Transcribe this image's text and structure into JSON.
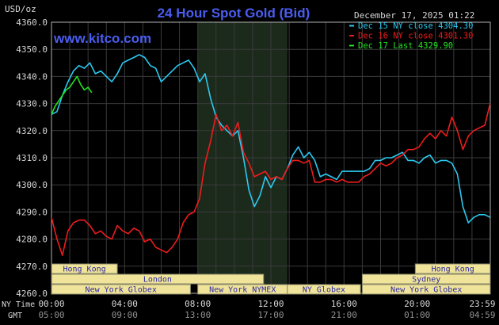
{
  "colors": {
    "background": "#000000",
    "plot_border": "#b0b0b0",
    "grid": "#3a3a3a",
    "night_band": "#1c2a1c",
    "title": "#4a5df0",
    "site": "#4a5df0",
    "axis_text": "#d8d8d8",
    "session_fill": "#f0e39a",
    "session_stroke": "#8a8a6a",
    "session_text": "#2a2aa0",
    "dec15": "#2cc9f0",
    "dec16": "#ee1c1c",
    "dec17": "#22e322"
  },
  "header": {
    "unit_label": "USD/oz",
    "title": "24 Hour Spot Gold (Bid)",
    "timestamp": "December 17, 2025 01:22",
    "site": "www.kitco.com"
  },
  "legend_items": [
    {
      "label": "Dec 15 NY close 4304.30",
      "color": "#2cc9f0"
    },
    {
      "label": "Dec 16 NY close 4301.30",
      "color": "#ee1c1c"
    },
    {
      "label": "Dec 17 Last 4329.90",
      "color": "#22e322"
    }
  ],
  "time_rows": {
    "ny_label": "NY Time",
    "gmt_label": "GMT",
    "ny_ticks": [
      "00:00",
      "04:00",
      "08:00",
      "12:00",
      "16:00",
      "20:00",
      "23:59"
    ],
    "gmt_ticks": [
      "05:00",
      "09:00",
      "13:00",
      "17:00",
      "21:00",
      "01:00",
      "04:59"
    ]
  },
  "sessions": [
    {
      "label": "Hong Kong",
      "start": -4,
      "end": 3.6,
      "row": 0
    },
    {
      "label": "Hong Kong",
      "start": 19.9,
      "end": 24,
      "row": 0
    },
    {
      "label": "London",
      "start": -4,
      "end": 11.6,
      "row": 1
    },
    {
      "label": "Sydney",
      "start": 17,
      "end": 24,
      "row": 1
    },
    {
      "label": "New York Globex",
      "start": -4,
      "end": 7.6,
      "row": 2
    },
    {
      "label": "New York NYMEX",
      "start": 8,
      "end": 12.9,
      "row": 2
    },
    {
      "label": "NY Globex",
      "start": 12.9,
      "end": 16.9,
      "row": 2
    },
    {
      "label": "New York Globex",
      "start": 17,
      "end": 24,
      "row": 2
    }
  ],
  "chart_data": {
    "type": "line",
    "title": "24 Hour Spot Gold (Bid)",
    "ylabel": "USD/oz",
    "xlabel": "",
    "xlim": [
      0,
      24
    ],
    "ylim": [
      4260,
      4360
    ],
    "x_unit": "hours, NY time",
    "y_ticks": [
      "4360.0",
      "4350.0",
      "4340.0",
      "4330.0",
      "4320.0",
      "4310.0",
      "4300.0",
      "4290.0",
      "4280.0",
      "4270.0",
      "4260.0"
    ],
    "y_tick_values": [
      4360,
      4350,
      4340,
      4330,
      4320,
      4310,
      4300,
      4290,
      4280,
      4270,
      4260
    ],
    "shaded_band": [
      8,
      12.9
    ],
    "grid": true,
    "series": [
      {
        "name": "Dec 15 NY close 4304.30",
        "color": "#2cc9f0",
        "x": [
          0,
          0.3,
          0.6,
          0.9,
          1.2,
          1.5,
          1.8,
          2.1,
          2.4,
          2.7,
          3.0,
          3.3,
          3.6,
          3.9,
          4.2,
          4.5,
          4.8,
          5.1,
          5.4,
          5.7,
          6.0,
          6.3,
          6.6,
          6.9,
          7.2,
          7.5,
          7.8,
          8.1,
          8.4,
          8.7,
          9.0,
          9.3,
          9.6,
          9.9,
          10.2,
          10.5,
          10.8,
          11.1,
          11.4,
          11.7,
          12.0,
          12.3,
          12.6,
          12.9,
          13.2,
          13.5,
          13.8,
          14.1,
          14.4,
          14.7,
          15.0,
          15.3,
          15.6,
          15.9,
          16.2,
          16.5,
          16.8,
          17.1,
          17.4,
          17.7,
          18.0,
          18.3,
          18.6,
          18.9,
          19.2,
          19.5,
          19.8,
          20.1,
          20.4,
          20.7,
          21.0,
          21.3,
          21.6,
          21.9,
          22.2,
          22.5,
          22.8,
          23.1,
          23.4,
          23.7,
          23.99
        ],
        "values": [
          4326,
          4327,
          4333,
          4338,
          4342,
          4344,
          4343,
          4345,
          4341,
          4342,
          4340,
          4338,
          4341,
          4345,
          4346,
          4347,
          4348,
          4347,
          4344,
          4343,
          4338,
          4340,
          4342,
          4344,
          4345,
          4346,
          4343,
          4338,
          4341,
          4332,
          4325,
          4322,
          4320,
          4318,
          4320,
          4310,
          4298,
          4292,
          4296,
          4303,
          4299,
          4303,
          4302,
          4306,
          4311,
          4314,
          4310,
          4312,
          4309,
          4303,
          4304,
          4303,
          4302,
          4305,
          4305,
          4305,
          4305,
          4305,
          4306,
          4309,
          4309,
          4310,
          4310,
          4311,
          4312,
          4309,
          4309,
          4308,
          4310,
          4311,
          4308,
          4309,
          4309,
          4308,
          4304,
          4292,
          4286,
          4288,
          4289,
          4289,
          4288
        ]
      },
      {
        "name": "Dec 16 NY close 4301.30",
        "color": "#ee1c1c",
        "x": [
          0,
          0.3,
          0.6,
          0.9,
          1.2,
          1.5,
          1.8,
          2.1,
          2.4,
          2.7,
          3.0,
          3.3,
          3.6,
          3.9,
          4.2,
          4.5,
          4.8,
          5.1,
          5.4,
          5.7,
          6.0,
          6.3,
          6.6,
          6.9,
          7.2,
          7.5,
          7.8,
          8.1,
          8.4,
          8.7,
          9.0,
          9.3,
          9.6,
          9.9,
          10.2,
          10.5,
          10.8,
          11.1,
          11.4,
          11.7,
          12.0,
          12.3,
          12.6,
          12.9,
          13.2,
          13.5,
          13.8,
          14.1,
          14.4,
          14.7,
          15.0,
          15.3,
          15.6,
          15.9,
          16.2,
          16.5,
          16.8,
          17.1,
          17.4,
          17.7,
          18.0,
          18.3,
          18.6,
          18.9,
          19.2,
          19.5,
          19.8,
          20.1,
          20.4,
          20.7,
          21.0,
          21.3,
          21.6,
          21.9,
          22.2,
          22.5,
          22.8,
          23.1,
          23.4,
          23.7,
          23.99
        ],
        "values": [
          4288,
          4280,
          4274,
          4283,
          4286,
          4287,
          4287,
          4285,
          4282,
          4283,
          4281,
          4280,
          4285,
          4283,
          4282,
          4284,
          4283,
          4279,
          4280,
          4277,
          4276,
          4275,
          4277,
          4280,
          4286,
          4289,
          4290,
          4295,
          4308,
          4316,
          4326,
          4320,
          4322,
          4318,
          4323,
          4312,
          4308,
          4303,
          4304,
          4305,
          4302,
          4303,
          4302,
          4306,
          4309,
          4309,
          4308,
          4309,
          4301,
          4301,
          4302,
          4302,
          4301,
          4302,
          4301,
          4301,
          4301,
          4303,
          4304,
          4306,
          4308,
          4307,
          4308,
          4310,
          4311,
          4313,
          4313,
          4314,
          4317,
          4319,
          4317,
          4320,
          4318,
          4325,
          4320,
          4313,
          4318,
          4320,
          4321,
          4322,
          4330
        ]
      },
      {
        "name": "Dec 17 Last 4329.90",
        "color": "#22e322",
        "x": [
          0,
          0.2,
          0.4,
          0.6,
          0.8,
          1.0,
          1.2,
          1.4,
          1.6,
          1.8,
          2.0,
          2.2
        ],
        "values": [
          4326,
          4329,
          4331,
          4333,
          4335,
          4336,
          4338,
          4340,
          4337,
          4335,
          4336,
          4334
        ]
      }
    ]
  }
}
